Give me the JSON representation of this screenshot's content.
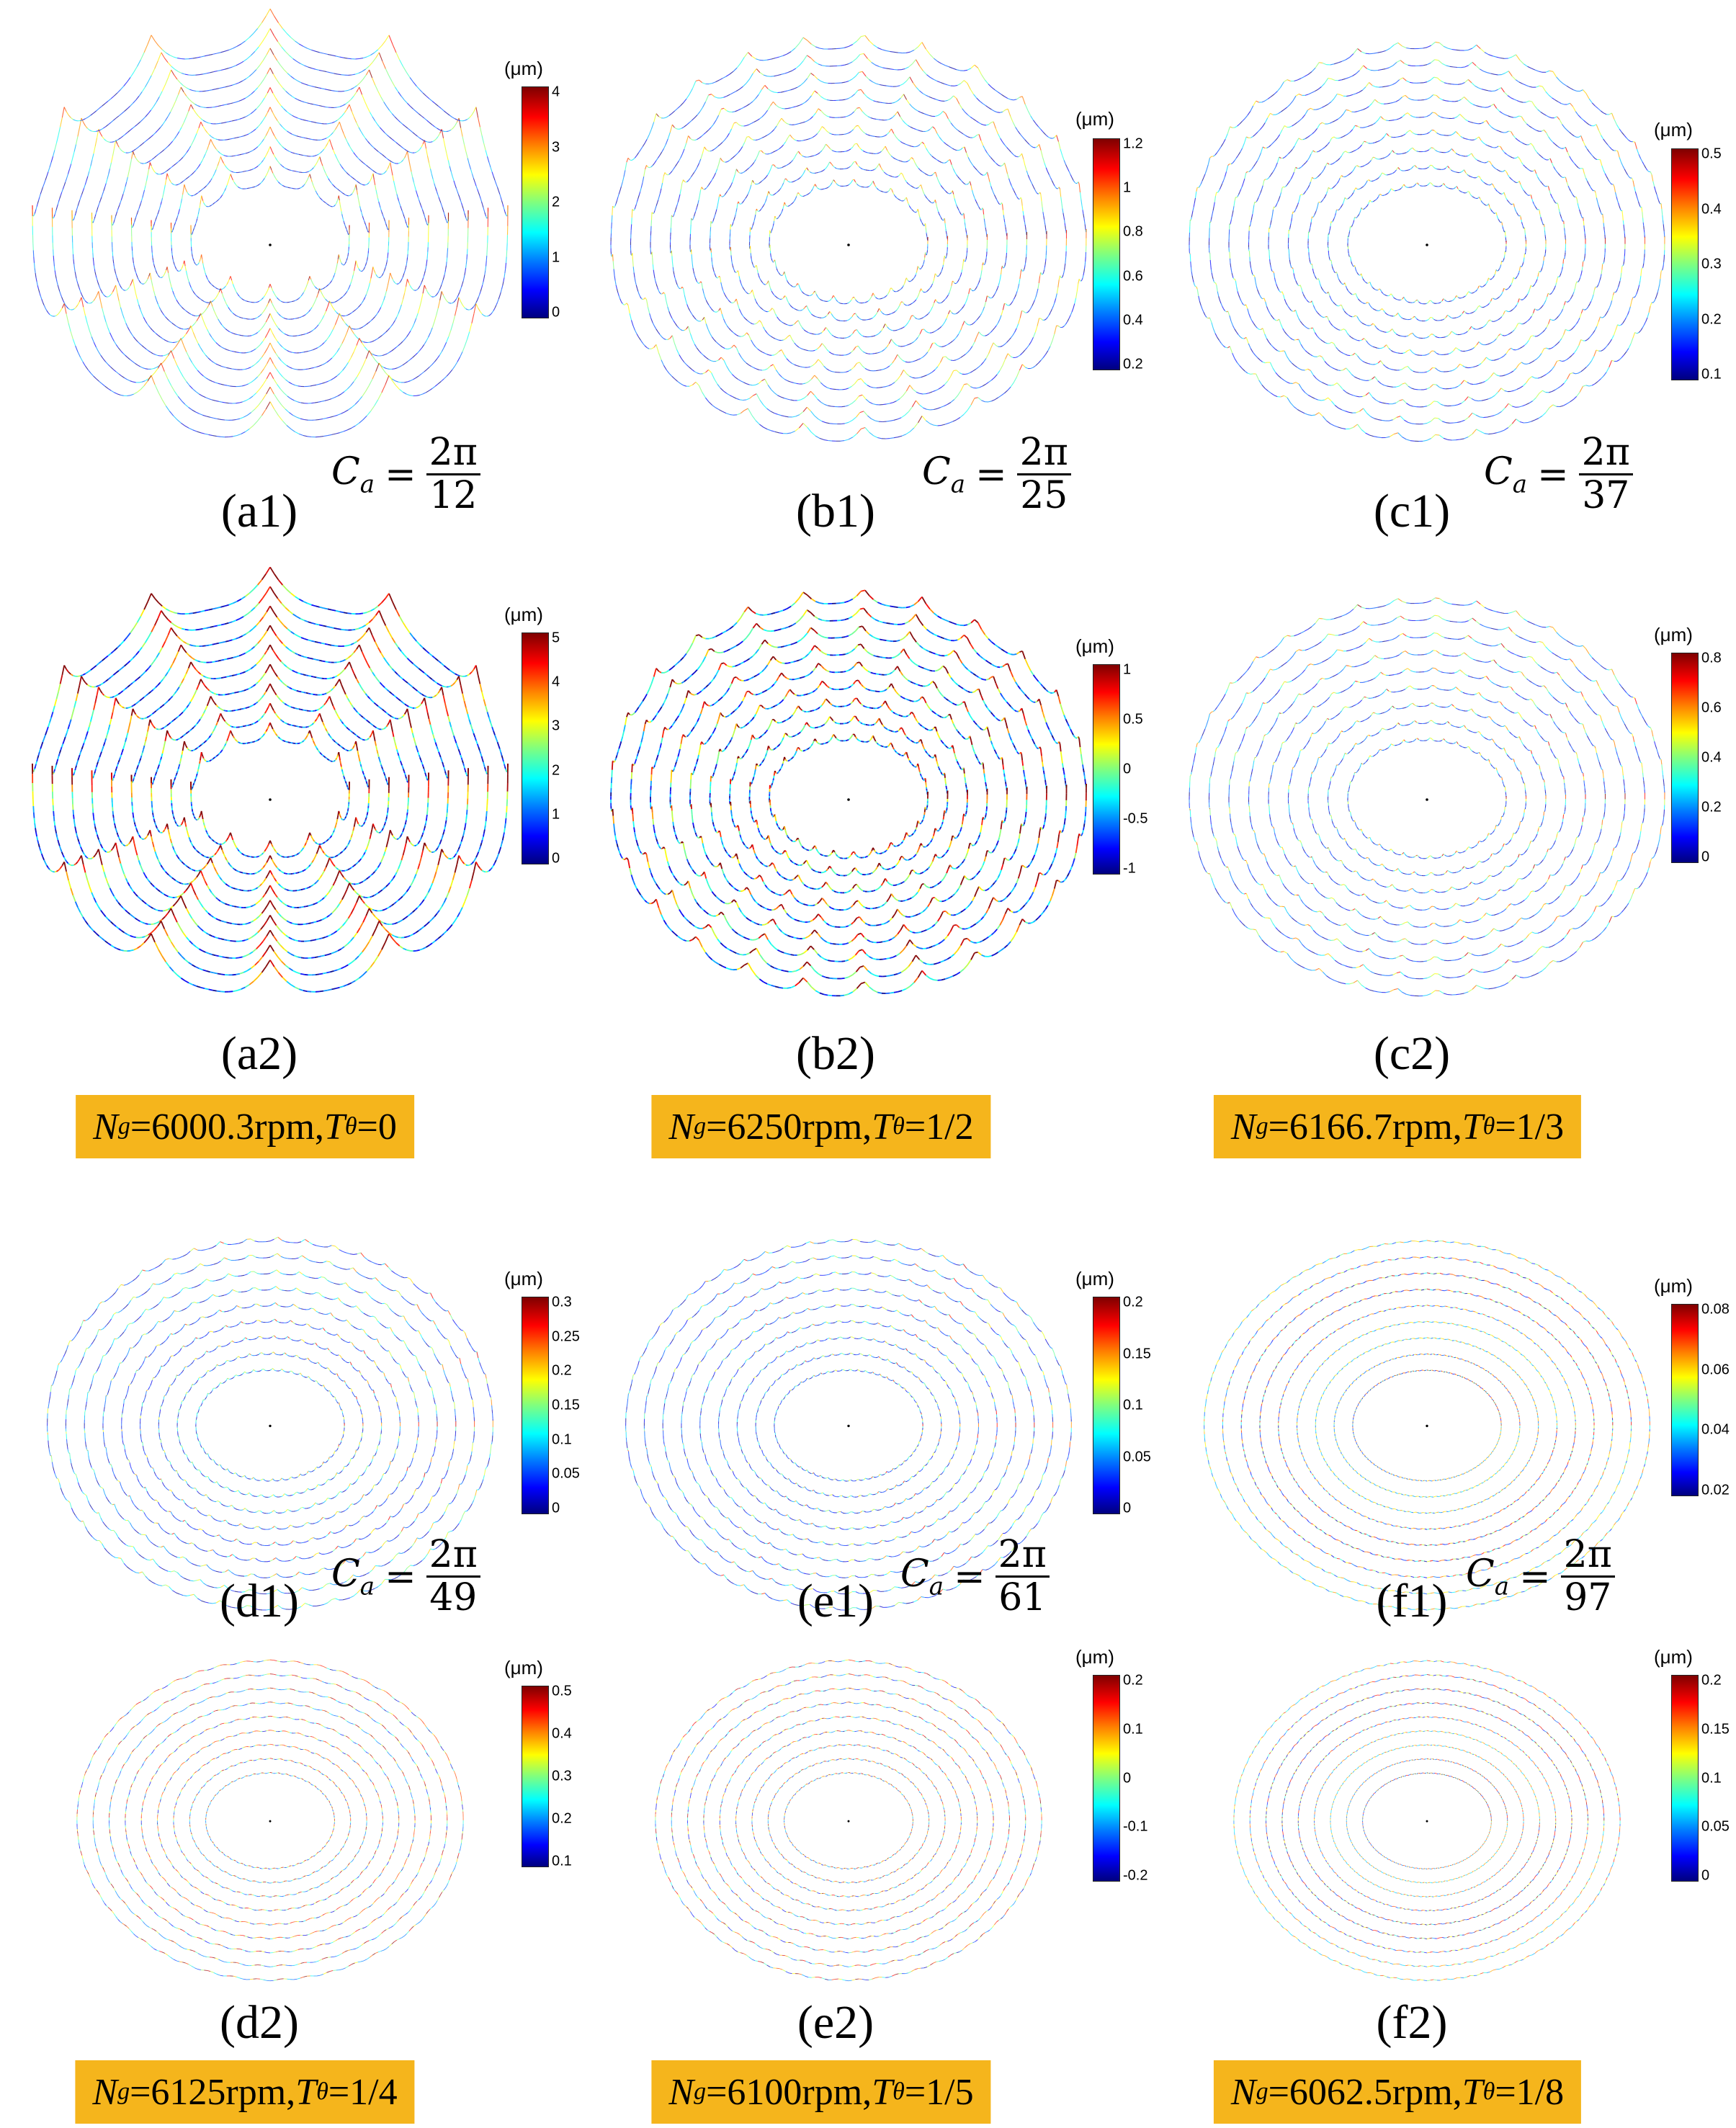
{
  "panels": [
    {
      "id": "a1",
      "label": "(a1)",
      "unit": "(μm)",
      "ticks": [
        "4",
        "3",
        "2",
        "1",
        "0"
      ],
      "style": "wavy",
      "waves": 12,
      "amp": 55,
      "density": 0.35
    },
    {
      "id": "b1",
      "label": "(b1)",
      "unit": "(μm)",
      "ticks": [
        "1.2",
        "1",
        "0.8",
        "0.6",
        "0.4",
        "0.2"
      ],
      "style": "wavy",
      "waves": 25,
      "amp": 22,
      "density": 0.35
    },
    {
      "id": "c1",
      "label": "(c1)",
      "unit": "(μm)",
      "ticks": [
        "0.5",
        "0.4",
        "0.3",
        "0.2",
        "0.1"
      ],
      "style": "wavy",
      "waves": 37,
      "amp": 12,
      "density": 0.3
    },
    {
      "id": "a2",
      "label": "(a2)",
      "unit": "(μm)",
      "ticks": [
        "5",
        "4",
        "3",
        "2",
        "1",
        "0"
      ],
      "style": "wavy",
      "waves": 12,
      "amp": 50,
      "density": 0.7
    },
    {
      "id": "b2",
      "label": "(b2)",
      "unit": "(μm)",
      "ticks": [
        "1",
        "0.5",
        "0",
        "-0.5",
        "-1"
      ],
      "style": "wavy",
      "waves": 25,
      "amp": 22,
      "density": 0.75
    },
    {
      "id": "c2",
      "label": "(c2)",
      "unit": "(μm)",
      "ticks": [
        "0.8",
        "0.6",
        "0.4",
        "0.2",
        "0"
      ],
      "style": "wavy",
      "waves": 37,
      "amp": 10,
      "density": 0.35
    },
    {
      "id": "d1",
      "label": "(d1)",
      "unit": "(μm)",
      "ticks": [
        "0.3",
        "0.25",
        "0.2",
        "0.15",
        "0.1",
        "0.05",
        "0"
      ],
      "style": "wavy",
      "waves": 49,
      "amp": 8,
      "density": 0.3
    },
    {
      "id": "e1",
      "label": "(e1)",
      "unit": "(μm)",
      "ticks": [
        "0.2",
        "0.15",
        "0.1",
        "0.05",
        "0"
      ],
      "style": "wavy",
      "waves": 61,
      "amp": 6,
      "density": 0.3
    },
    {
      "id": "f1",
      "label": "(f1)",
      "unit": "(μm)",
      "ticks": [
        "0.08",
        "0.06",
        "0.04",
        "0.02"
      ],
      "style": "ring",
      "waves": 97,
      "amp": 2,
      "density": 0.3
    },
    {
      "id": "d2",
      "label": "(d2)",
      "unit": "(μm)",
      "ticks": [
        "0.5",
        "0.4",
        "0.3",
        "0.2",
        "0.1"
      ],
      "style": "ring",
      "waves": 49,
      "amp": 3,
      "density": 0.4
    },
    {
      "id": "e2",
      "label": "(e2)",
      "unit": "(μm)",
      "ticks": [
        "0.2",
        "0.1",
        "0",
        "-0.1",
        "-0.2"
      ],
      "style": "ring",
      "waves": 61,
      "amp": 3,
      "density": 0.4
    },
    {
      "id": "f2",
      "label": "(f2)",
      "unit": "(μm)",
      "ticks": [
        "0.2",
        "0.15",
        "0.1",
        "0.05",
        "0"
      ],
      "style": "ring",
      "waves": 97,
      "amp": 2,
      "density": 0.4
    }
  ],
  "ca_labels": [
    {
      "panel": "a1",
      "symbol": "C",
      "sub": "a",
      "equals": "=",
      "num": "2π",
      "den": "12"
    },
    {
      "panel": "b1",
      "symbol": "C",
      "sub": "a",
      "equals": "=",
      "num": "2π",
      "den": "25"
    },
    {
      "panel": "c1",
      "symbol": "C",
      "sub": "a",
      "equals": "=",
      "num": "2π",
      "den": "37"
    },
    {
      "panel": "d1",
      "symbol": "C",
      "sub": "a",
      "equals": "=",
      "num": "2π",
      "den": "49"
    },
    {
      "panel": "e1",
      "symbol": "C",
      "sub": "a",
      "equals": "=",
      "num": "2π",
      "den": "61"
    },
    {
      "panel": "f1",
      "symbol": "C",
      "sub": "a",
      "equals": "=",
      "num": "2π",
      "den": "97"
    }
  ],
  "conditions": [
    {
      "n": "N",
      "n_sub": "g",
      "n_val": "=6000.3rpm, ",
      "t": "T",
      "t_sub": "θ",
      "t_val": "=0"
    },
    {
      "n": "N",
      "n_sub": "g",
      "n_val": "=6250rpm, ",
      "t": "T",
      "t_sub": "θ",
      "t_val": "=1/2"
    },
    {
      "n": "N",
      "n_sub": "g",
      "n_val": "=6166.7rpm, ",
      "t": "T",
      "t_sub": "θ",
      "t_val": "=1/3"
    },
    {
      "n": "N",
      "n_sub": "g",
      "n_val": "=6125rpm, ",
      "t": "T",
      "t_sub": "θ",
      "t_val": "=1/4"
    },
    {
      "n": "N",
      "n_sub": "g",
      "n_val": "=6100rpm, ",
      "t": "T",
      "t_sub": "θ",
      "t_val": "=1/5"
    },
    {
      "n": "N",
      "n_sub": "g",
      "n_val": "=6062.5rpm, ",
      "t": "T",
      "t_sub": "θ",
      "t_val": "=1/8"
    }
  ]
}
